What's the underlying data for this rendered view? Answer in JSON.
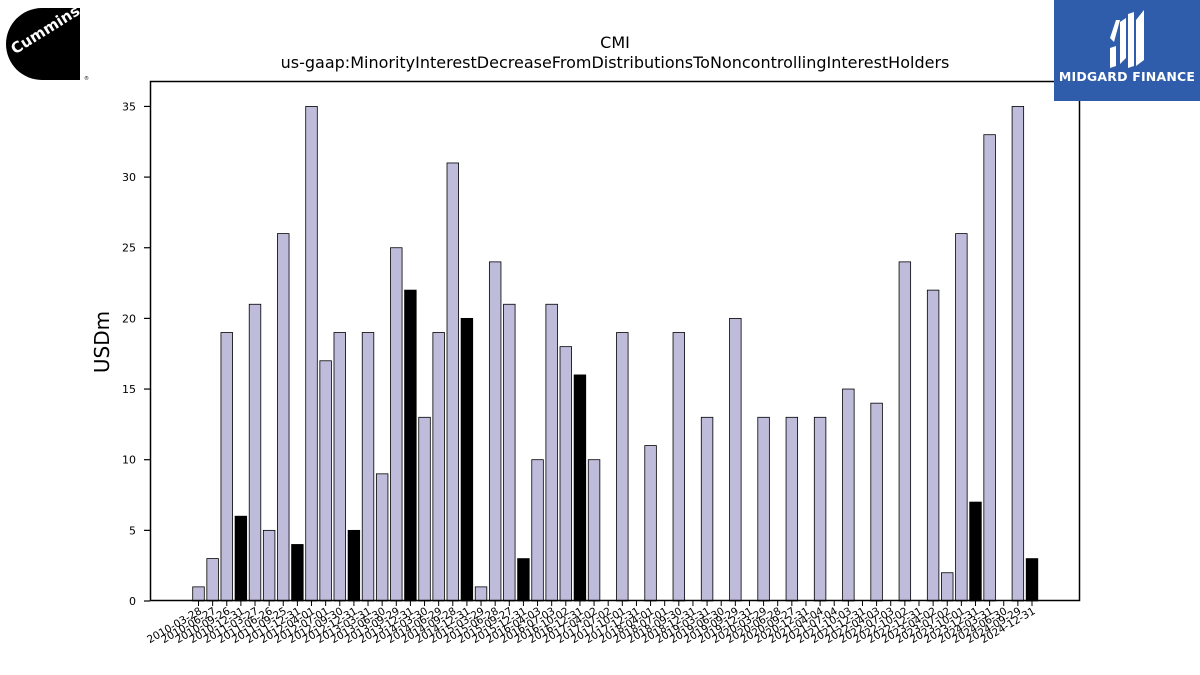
{
  "logos": {
    "left_text": "Cummins",
    "right_text": "MIDGARD FINANCE"
  },
  "chart_data": {
    "type": "bar",
    "title": "CMI",
    "subtitle": "us-gaap:MinorityInterestDecreaseFromDistributionsToNoncontrollingInterestHolders",
    "xlabel": "",
    "ylabel": "USDm",
    "ylim": [
      0,
      36.8
    ],
    "yticks": [
      0,
      5,
      10,
      15,
      20,
      25,
      30,
      35
    ],
    "colors": {
      "regular": "#bfbcdb",
      "highlight": "#000000",
      "edge": "#000000"
    },
    "categories": [
      "2010-03-28",
      "2010-06-27",
      "2010-09-26",
      "2010-12-31",
      "2011-03-27",
      "2011-06-26",
      "2011-09-25",
      "2011-12-31",
      "2012-04-01",
      "2012-07-01",
      "2012-09-30",
      "2012-12-31",
      "2013-03-31",
      "2013-06-30",
      "2013-09-29",
      "2013-12-31",
      "2014-03-30",
      "2014-06-29",
      "2014-09-28",
      "2014-12-31",
      "2015-03-29",
      "2015-06-28",
      "2015-09-27",
      "2015-12-31",
      "2016-04-03",
      "2016-07-03",
      "2016-10-02",
      "2016-12-31",
      "2017-04-02",
      "2017-07-02",
      "2017-10-01",
      "2017-12-31",
      "2018-04-01",
      "2018-07-01",
      "2018-09-30",
      "2018-12-31",
      "2019-03-31",
      "2019-06-30",
      "2019-09-29",
      "2019-12-31",
      "2020-03-29",
      "2020-06-28",
      "2020-09-27",
      "2020-12-31",
      "2021-04-04",
      "2021-07-04",
      "2021-10-03",
      "2021-12-31",
      "2022-04-03",
      "2022-07-03",
      "2022-10-02",
      "2022-12-31",
      "2023-04-02",
      "2023-07-02",
      "2023-10-01",
      "2023-12-31",
      "2024-03-31",
      "2024-06-30",
      "2024-09-29",
      "2024-12-31"
    ],
    "values": [
      1,
      3,
      19,
      6,
      21,
      5,
      26,
      4,
      35,
      17,
      19,
      5,
      19,
      9,
      25,
      22,
      13,
      19,
      31,
      20,
      1,
      24,
      21,
      3,
      10,
      21,
      18,
      16,
      10,
      null,
      19,
      null,
      11,
      null,
      19,
      null,
      13,
      null,
      20,
      null,
      13,
      null,
      13,
      null,
      13,
      null,
      15,
      null,
      14,
      null,
      24,
      null,
      22,
      2,
      26,
      7,
      33,
      null,
      35,
      3
    ],
    "highlighted": [
      false,
      false,
      false,
      true,
      false,
      false,
      false,
      true,
      false,
      false,
      false,
      true,
      false,
      false,
      false,
      true,
      false,
      false,
      false,
      true,
      false,
      false,
      false,
      true,
      false,
      false,
      false,
      true,
      false,
      false,
      false,
      false,
      false,
      false,
      false,
      false,
      false,
      false,
      false,
      false,
      false,
      false,
      false,
      false,
      false,
      false,
      false,
      false,
      false,
      false,
      false,
      false,
      false,
      false,
      false,
      true,
      false,
      false,
      false,
      true
    ]
  }
}
